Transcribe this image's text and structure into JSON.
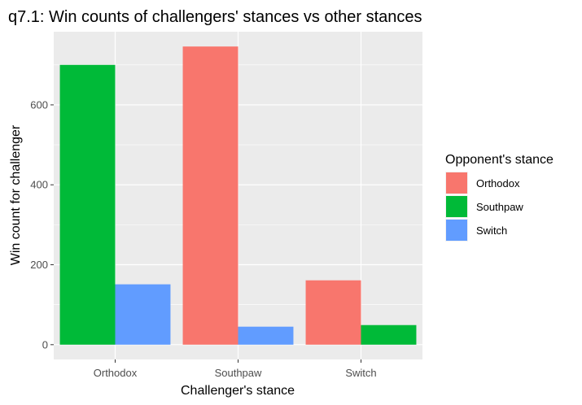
{
  "chart_data": {
    "type": "bar",
    "title": "q7.1: Win counts of challengers' stances vs other stances",
    "xlabel": "Challenger's stance",
    "ylabel": "Win count for challenger",
    "categories": [
      "Orthodox",
      "Southpaw",
      "Switch"
    ],
    "series": [
      {
        "name": "Orthodox",
        "color": "#F8766D",
        "values": [
          null,
          746,
          161
        ]
      },
      {
        "name": "Southpaw",
        "color": "#00BA38",
        "values": [
          700,
          null,
          49
        ]
      },
      {
        "name": "Switch",
        "color": "#619CFF",
        "values": [
          151,
          45,
          null
        ]
      }
    ],
    "yticks": [
      0,
      200,
      400,
      600
    ],
    "ylim": [
      -37,
      783
    ],
    "legend_title": "Opponent's stance",
    "legend_position": "right",
    "grid": true,
    "panel_color": "#EBEBEB"
  }
}
